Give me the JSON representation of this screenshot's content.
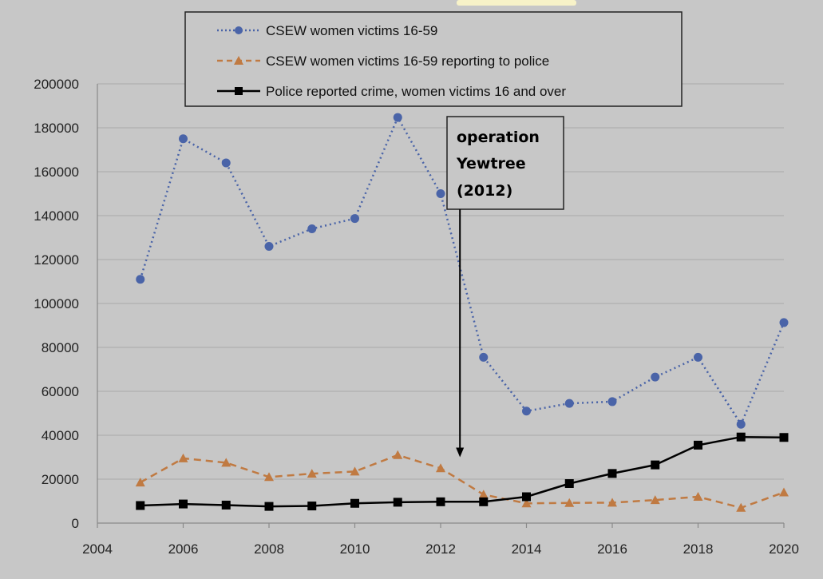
{
  "chart_data": {
    "type": "line",
    "title": "",
    "xlabel": "",
    "ylabel": "",
    "xlim": [
      2004,
      2020
    ],
    "ylim": [
      0,
      200000
    ],
    "x_ticks": [
      "2004",
      "2006",
      "2008",
      "2010",
      "2012",
      "2014",
      "2016",
      "2018",
      "2020"
    ],
    "y_ticks": [
      "0",
      "20000",
      "40000",
      "60000",
      "80000",
      "100000",
      "120000",
      "140000",
      "160000",
      "180000",
      "200000"
    ],
    "grid": "horizontal",
    "legend_position": "top",
    "series": [
      {
        "name": "CSEW women victims 16-59",
        "color": "#4a64a8",
        "style": "dotted",
        "marker": "circle",
        "x": [
          2005,
          2006,
          2007,
          2008,
          2009,
          2010,
          2011,
          2012,
          2013,
          2014,
          2015,
          2016,
          2017,
          2018,
          2019,
          2020
        ],
        "y": [
          111000,
          175000,
          164000,
          126000,
          134000,
          138700,
          184700,
          150000,
          75500,
          51000,
          54500,
          55300,
          66500,
          75500,
          45000,
          91300
        ]
      },
      {
        "name": "CSEW women victims 16-59 reporting to police",
        "color": "#c07a42",
        "style": "dashed",
        "marker": "triangle",
        "x": [
          2005,
          2006,
          2007,
          2008,
          2009,
          2010,
          2011,
          2012,
          2013,
          2014,
          2015,
          2016,
          2017,
          2018,
          2019,
          2020
        ],
        "y": [
          18500,
          29500,
          27500,
          21000,
          22500,
          23500,
          31000,
          25000,
          13000,
          9000,
          9200,
          9300,
          10500,
          12000,
          7000,
          14000
        ]
      },
      {
        "name": "Police reported crime, women victims 16 and over",
        "color": "#000000",
        "style": "solid",
        "marker": "square",
        "x": [
          2005,
          2006,
          2007,
          2008,
          2009,
          2010,
          2011,
          2012,
          2013,
          2014,
          2015,
          2016,
          2017,
          2018,
          2019,
          2020
        ],
        "y": [
          8000,
          8700,
          8200,
          7600,
          7800,
          9000,
          9500,
          9700,
          9700,
          12000,
          18000,
          22600,
          26500,
          35500,
          39200,
          39000
        ]
      }
    ],
    "annotation": {
      "lines": [
        "operation",
        "Yewtree",
        "(2012)"
      ],
      "arrow_x": 2012.45,
      "arrow_from_y": 160000,
      "arrow_to_y": 30000
    }
  }
}
